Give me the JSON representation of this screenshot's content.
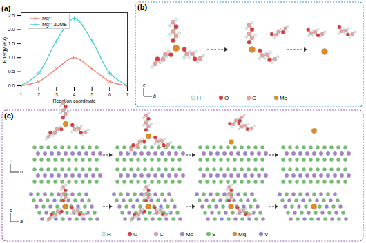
{
  "chart_data": {
    "type": "line",
    "title": "(a)",
    "x_label": "Reaction coordinate",
    "y_label": "Energy (eV)",
    "x": [
      1,
      2,
      3,
      4,
      5,
      6,
      7
    ],
    "series": [
      {
        "name": "Mg²⁺",
        "color": "#f07f6e",
        "marker": "times",
        "values": [
          0,
          0.15,
          0.6,
          1.0,
          0.6,
          0.15,
          0
        ]
      },
      {
        "name": "Mg²⁺-3DME",
        "color": "#3ccbd4",
        "marker": "plus",
        "values": [
          0,
          0.45,
          1.6,
          2.4,
          1.6,
          0.45,
          0
        ]
      }
    ],
    "xlim": [
      1,
      7
    ],
    "xticks": [
      1,
      2,
      3,
      4,
      5,
      6,
      7
    ],
    "ylim": [
      -0.05,
      2.6
    ],
    "yticks": [
      {
        "value": 0,
        "label": "0.0"
      },
      {
        "value": 0.5,
        "label": "0.5"
      },
      {
        "value": 1,
        "label": "1.0"
      },
      {
        "value": 1.5,
        "label": "1.5"
      },
      {
        "value": 2,
        "label": "2.0"
      },
      {
        "value": 2.5,
        "label": "2.5"
      }
    ],
    "legend": "upper left",
    "grid": false
  },
  "panel_b": {
    "label": "(b)",
    "axes": {
      "up": "c",
      "right": "b"
    },
    "legend": [
      {
        "label": "H",
        "color": "#d6eef2"
      },
      {
        "label": "O",
        "color": "#e03a3a"
      },
      {
        "label": "C",
        "color": "#eaa3a3"
      },
      {
        "label": "Mg",
        "color": "#e58a1f"
      }
    ]
  },
  "panel_c": {
    "label": "(c)",
    "side_axes": {
      "up": "c",
      "right": "b"
    },
    "top_axes": {
      "up": "b",
      "right": "a"
    },
    "legend": [
      {
        "label": "H",
        "color": "#d6eef2"
      },
      {
        "label": "O",
        "color": "#e03a3a"
      },
      {
        "label": "C",
        "color": "#eaa3a3"
      },
      {
        "label": "Mo",
        "color": "#a583c4"
      },
      {
        "label": "S",
        "color": "#6cc46c"
      },
      {
        "label": "Mg",
        "color": "#e58a1f"
      },
      {
        "label": "V",
        "color": "#8a86e6"
      }
    ]
  }
}
